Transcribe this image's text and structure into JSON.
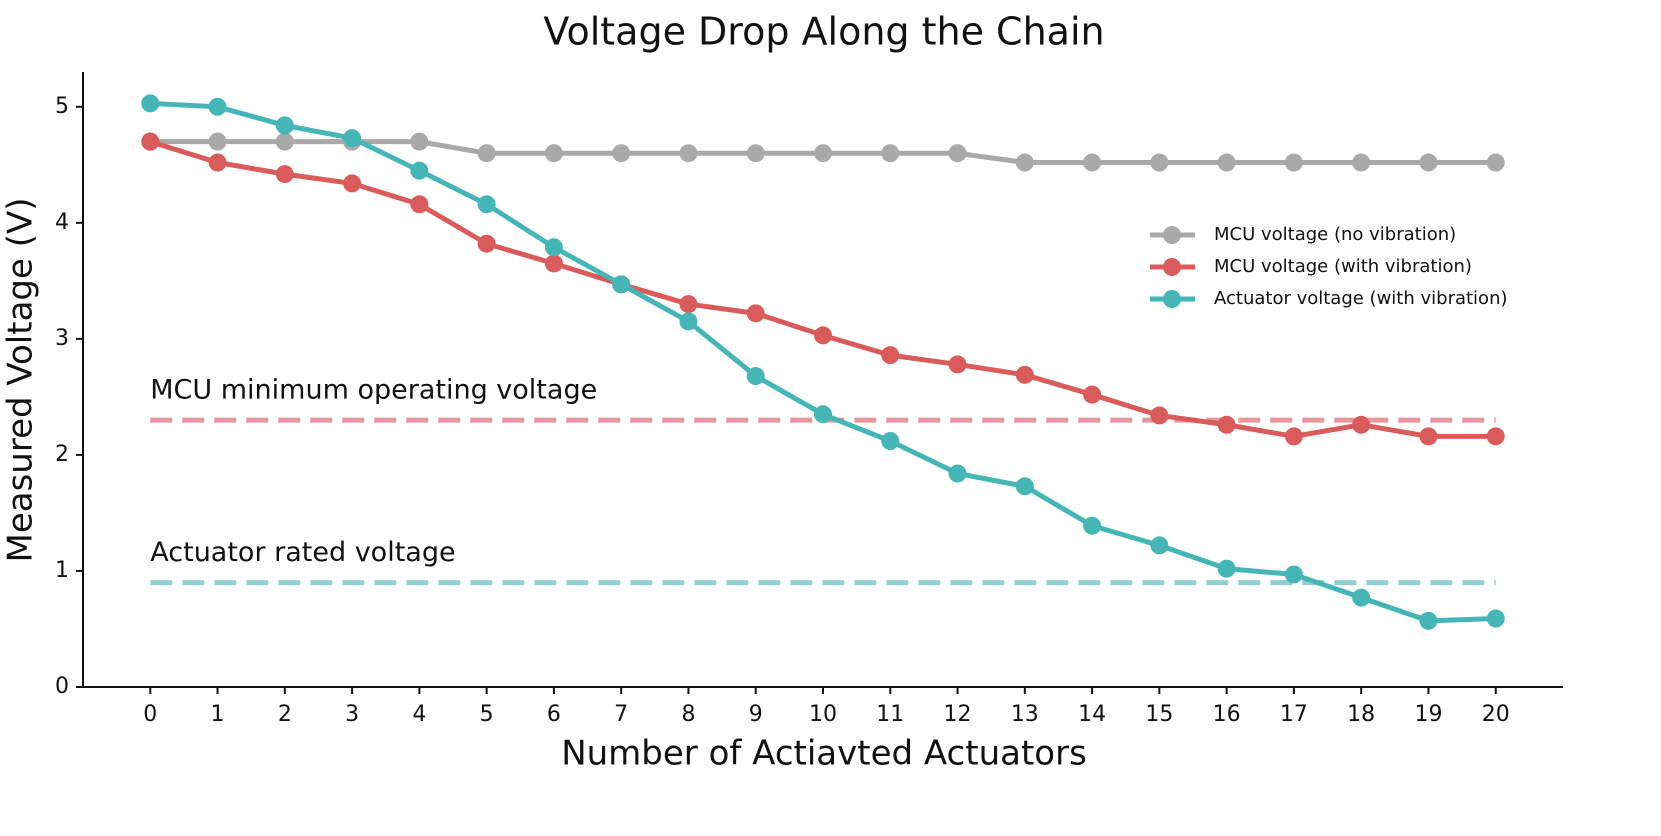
{
  "chart_data": {
    "type": "line",
    "title": "Voltage Drop Along the Chain",
    "x_label": "Number of Actiavted Actuators",
    "y_label": "Measured Voltage (V)",
    "x": [
      0,
      1,
      2,
      3,
      4,
      5,
      6,
      7,
      8,
      9,
      10,
      11,
      12,
      13,
      14,
      15,
      16,
      17,
      18,
      19,
      20
    ],
    "series": [
      {
        "name": "MCU voltage (no vibration)",
        "color": "#a9a9a9",
        "values": [
          4.7,
          4.7,
          4.7,
          4.7,
          4.7,
          4.6,
          4.6,
          4.6,
          4.6,
          4.6,
          4.6,
          4.6,
          4.6,
          4.52,
          4.52,
          4.52,
          4.52,
          4.52,
          4.52,
          4.52,
          4.52
        ]
      },
      {
        "name": "MCU voltage (with vibration)",
        "color": "#d95b5b",
        "values": [
          4.7,
          4.52,
          4.42,
          4.34,
          4.16,
          3.82,
          3.65,
          3.47,
          3.3,
          3.22,
          3.03,
          2.86,
          2.78,
          2.69,
          2.52,
          2.34,
          2.26,
          2.16,
          2.26,
          2.16,
          2.16
        ]
      },
      {
        "name": "Actuator voltage (with vibration)",
        "color": "#45b5b5",
        "values": [
          5.03,
          5.0,
          4.84,
          4.73,
          4.45,
          4.16,
          3.79,
          3.47,
          3.15,
          2.68,
          2.35,
          2.12,
          1.84,
          1.73,
          1.39,
          1.22,
          1.02,
          0.97,
          0.77,
          0.57,
          0.59
        ]
      }
    ],
    "reference_lines": [
      {
        "label": "MCU minimum operating voltage",
        "value": 2.3,
        "color": "#e8969e"
      },
      {
        "label": "Actuator rated voltage",
        "value": 0.9,
        "color": "#92cdd3"
      }
    ],
    "xlim": [
      -1,
      21
    ],
    "ylim": [
      0,
      5.3
    ],
    "xticks": [
      0,
      1,
      2,
      3,
      4,
      5,
      6,
      7,
      8,
      9,
      10,
      11,
      12,
      13,
      14,
      15,
      16,
      17,
      18,
      19,
      20
    ],
    "yticks": [
      0,
      1,
      2,
      3,
      4,
      5
    ],
    "legend": "right"
  }
}
